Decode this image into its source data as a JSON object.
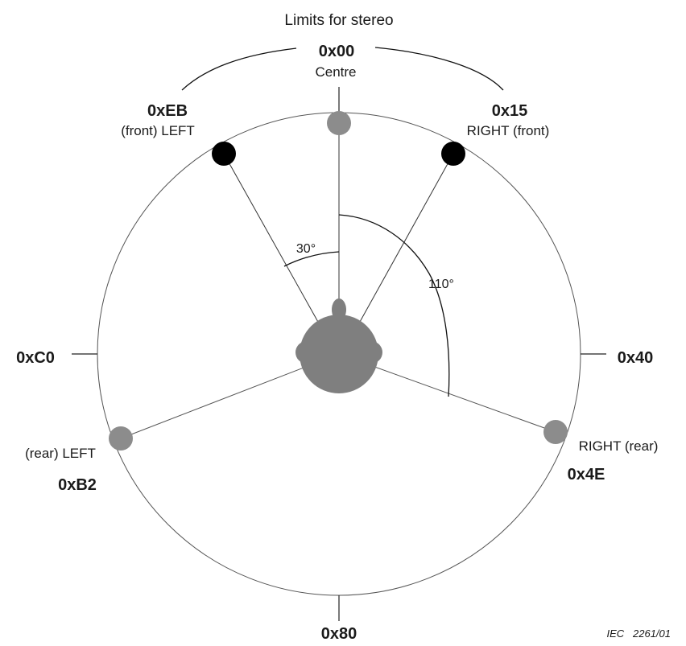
{
  "title": "Limits for stereo",
  "codes": {
    "centre": "0x00",
    "front_left": "0xEB",
    "front_right": "0x15",
    "left": "0xC0",
    "right": "0x40",
    "rear_left": "0xB2",
    "rear_right": "0x4E",
    "back": "0x80"
  },
  "labels": {
    "centre": "Centre",
    "front_left": "(front) LEFT",
    "front_right": "RIGHT (front)",
    "rear_left": "(rear) LEFT",
    "rear_right": "RIGHT (rear)"
  },
  "angles": {
    "front_angle": "30°",
    "rear_angle": "110°"
  },
  "figure_id": "IEC   2261/01",
  "colors": {
    "speaker_grey": "#8c8c8c",
    "speaker_black": "#000000",
    "listener": "#7f7f7f",
    "line": "#333333"
  }
}
